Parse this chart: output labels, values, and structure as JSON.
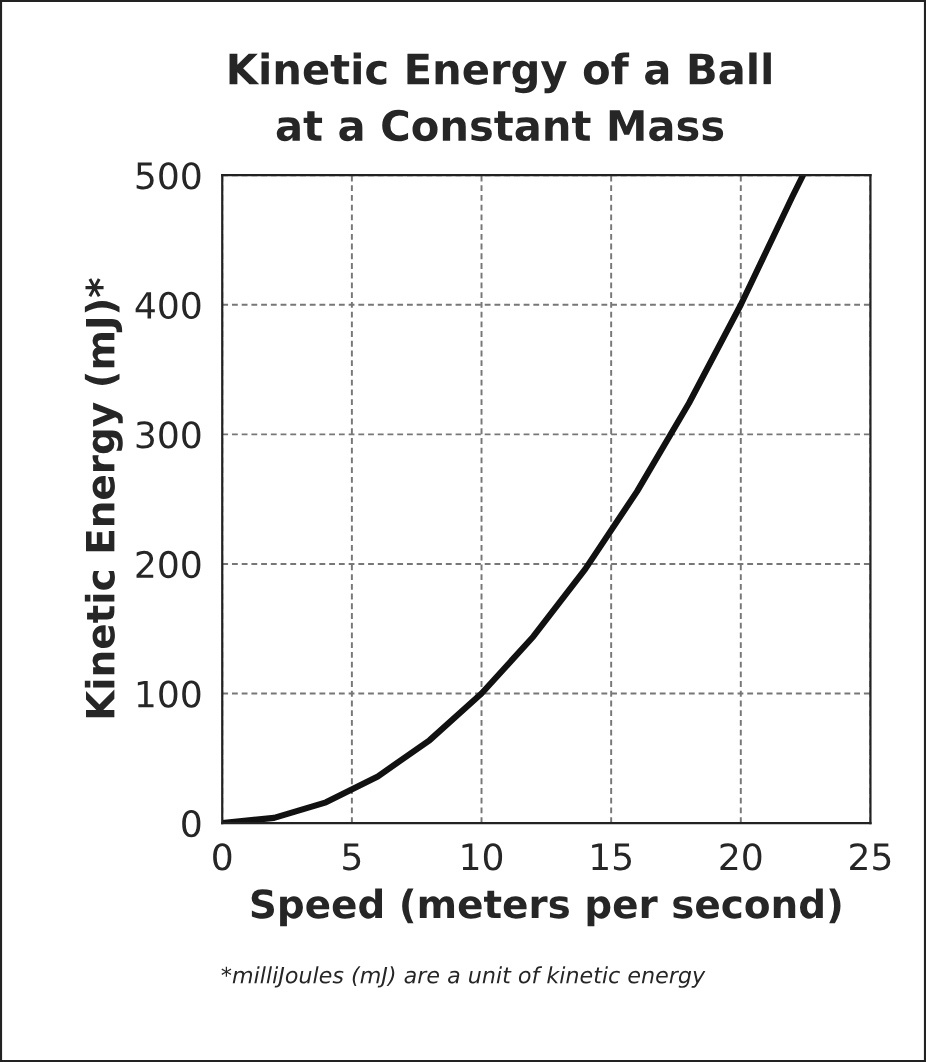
{
  "chart_data": {
    "type": "line",
    "title": "Kinetic Energy of a Ball\nat a Constant Mass",
    "xlabel": "Speed (meters per second)",
    "ylabel": "Kinetic Energy (mJ)*",
    "x": [
      0,
      2,
      4,
      6,
      8,
      10,
      12,
      14,
      16,
      18,
      20,
      22,
      22.4
    ],
    "series": [
      {
        "color": "#111111",
        "values": [
          0,
          4,
          16,
          36,
          64,
          100,
          144,
          196,
          256,
          324,
          400,
          484,
          500
        ]
      }
    ],
    "xlim": [
      0,
      25
    ],
    "xticks": [
      0,
      5,
      10,
      15,
      20,
      25
    ],
    "ylim": [
      0,
      500
    ],
    "yticks": [
      0,
      100,
      200,
      300,
      400,
      500
    ],
    "grid": true,
    "marker": "none",
    "line_style": "solid",
    "annotations": [
      "*milliJoules (mJ) are a unit of kinetic energy"
    ]
  }
}
